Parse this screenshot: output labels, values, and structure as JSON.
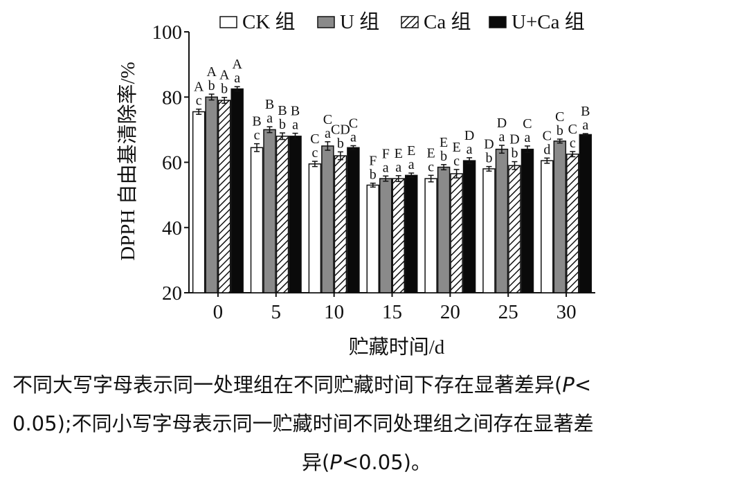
{
  "chart_data": {
    "type": "bar",
    "xlabel": "贮藏时间/d",
    "ylabel": "DPPH 自由基清除率/%",
    "ylim": [
      20,
      100
    ],
    "yticks": [
      "20",
      "40",
      "60",
      "80",
      "100"
    ],
    "categories": [
      "0",
      "5",
      "10",
      "15",
      "20",
      "25",
      "30"
    ],
    "legend_position": "top",
    "series": [
      {
        "name": "CK 组",
        "pattern": "white",
        "values": [
          75.5,
          64.5,
          59.5,
          53.0,
          55.0,
          58.0,
          60.5
        ],
        "errors": [
          0.8,
          1.2,
          0.8,
          0.6,
          1.0,
          0.7,
          0.8
        ],
        "upper_letters": [
          "A",
          "B",
          "C",
          "F",
          "E",
          "D",
          "C"
        ],
        "lower_letters": [
          "c",
          "c",
          "c",
          "b",
          "c",
          "b",
          "d"
        ]
      },
      {
        "name": "U 组",
        "pattern": "gray",
        "values": [
          80.0,
          70.0,
          65.0,
          55.0,
          58.5,
          64.0,
          66.5
        ],
        "errors": [
          0.9,
          0.9,
          1.3,
          0.8,
          0.8,
          1.2,
          0.6
        ],
        "upper_letters": [
          "A",
          "B",
          "C",
          "F",
          "E",
          "D",
          "C"
        ],
        "lower_letters": [
          "b",
          "a",
          "a",
          "a",
          "b",
          "a",
          "b"
        ]
      },
      {
        "name": "Ca 组",
        "pattern": "hatched",
        "values": [
          79.0,
          68.0,
          62.0,
          55.0,
          56.5,
          59.0,
          62.5
        ],
        "errors": [
          0.9,
          1.0,
          1.2,
          0.9,
          1.3,
          1.2,
          0.8
        ],
        "upper_letters": [
          "A",
          "B",
          "CD",
          "E",
          "E",
          "D",
          "C"
        ],
        "lower_letters": [
          "b",
          "b",
          "b",
          "a",
          "c",
          "b",
          "c"
        ]
      },
      {
        "name": "U+Ca 组",
        "pattern": "black",
        "values": [
          82.5,
          68.0,
          64.5,
          56.0,
          60.5,
          64.0,
          68.5
        ],
        "errors": [
          0.7,
          0.9,
          0.6,
          0.7,
          0.9,
          1.0,
          0.3
        ],
        "upper_letters": [
          "A",
          "B",
          "C",
          "E",
          "D",
          "C",
          "B"
        ],
        "lower_letters": [
          "a",
          "a",
          "a",
          "a",
          "a",
          "a",
          "a"
        ]
      }
    ]
  },
  "caption": {
    "line1": "不同大写字母表示同一处理组在不同贮藏时间下存在显著差异(",
    "line1_p": "P",
    "line1_end": "<",
    "line2": "0.05);不同小写字母表示同一贮藏时间不同处理组之间存在显著差",
    "line3_start": "异(",
    "line3_p": "P",
    "line3_end": "<0.05)。"
  }
}
